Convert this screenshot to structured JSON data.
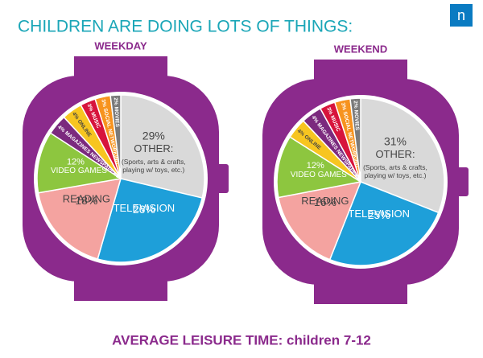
{
  "title": "CHILDREN ARE DOING LOTS OF THINGS:",
  "footer": "AVERAGE LEISURE TIME: children 7-12",
  "logo": "n",
  "chart_data": [
    {
      "type": "pie",
      "title": "WEEKDAY",
      "categories": [
        "OTHER:",
        "TELEVISION",
        "READING",
        "VIDEO GAMES",
        "MAGAZINES NEWSPAPERS",
        "ONLINE",
        "MUSIC",
        "SOCIAL NETWORKING",
        "MOVIES"
      ],
      "values": [
        29,
        26,
        18,
        12,
        4,
        4,
        3,
        3,
        2
      ],
      "value_labels": [
        "29%",
        "26%",
        "18%",
        "12%",
        "4%",
        "4%",
        "3%",
        "3%",
        "2%"
      ],
      "colors": [
        "#d9d9d9",
        "#1e9fd9",
        "#f4a3a0",
        "#8dc63f",
        "#7b2a7e",
        "#f7c520",
        "#d7143c",
        "#f7931e",
        "#7a7a7a"
      ],
      "annotation": "(Sports, arts & crafts, playing w/ toys, etc.)"
    },
    {
      "type": "pie",
      "title": "WEEKEND",
      "categories": [
        "OTHER:",
        "TELEVISION",
        "READING",
        "VIDEO GAMES",
        "ONLINE",
        "MAGAZINES NEWSPAPERS",
        "MUSIC",
        "SOCIAL NETWORKING",
        "MOVIES"
      ],
      "values": [
        31,
        25,
        16,
        12,
        4,
        4,
        3,
        3,
        2
      ],
      "value_labels": [
        "31%",
        "25%",
        "16%",
        "12%",
        "4%",
        "4%",
        "3%",
        "3%",
        "2%"
      ],
      "colors": [
        "#d9d9d9",
        "#1e9fd9",
        "#f4a3a0",
        "#8dc63f",
        "#f7c520",
        "#7b2a7e",
        "#d7143c",
        "#f7931e",
        "#7a7a7a"
      ],
      "annotation": "(Sports, arts & crafts, playing w/ toys, etc.)"
    }
  ]
}
